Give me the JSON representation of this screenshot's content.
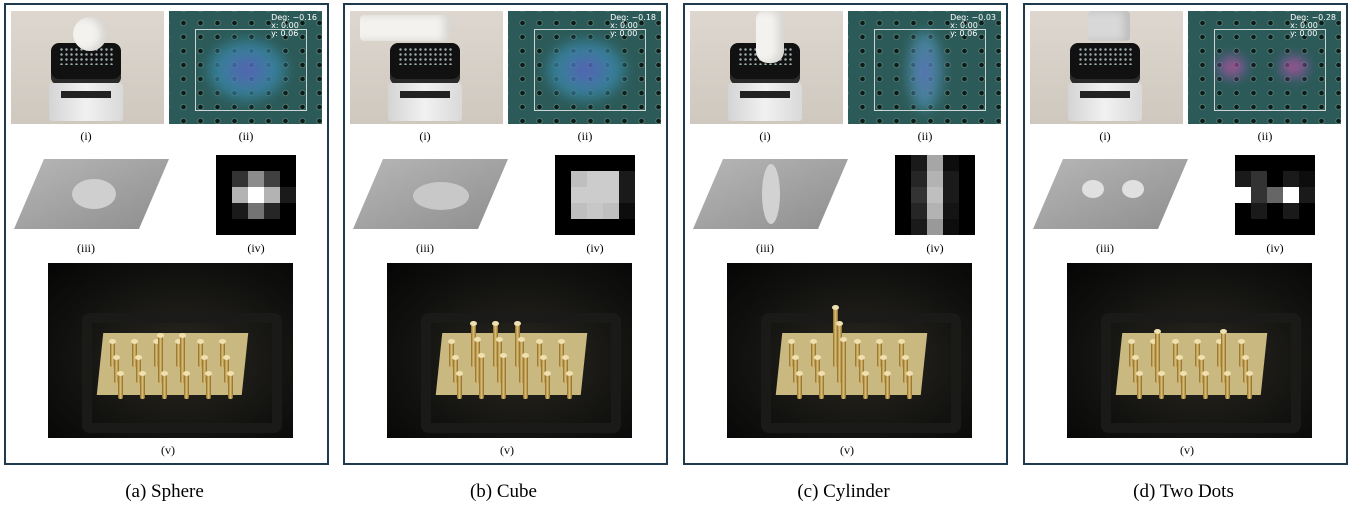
{
  "sublabels": {
    "i": "(i)",
    "ii": "(ii)",
    "iii": "(iii)",
    "iv": "(iv)",
    "v": "(v)"
  },
  "panels": [
    {
      "caption": "(a) Sphere",
      "overlay": {
        "deg": "Deg: −0.16",
        "x": "x: 0.00",
        "y": "y: 0.06"
      },
      "heatmap": [
        [
          0,
          0,
          0,
          0,
          0
        ],
        [
          0,
          20,
          55,
          25,
          0
        ],
        [
          0,
          70,
          100,
          70,
          10
        ],
        [
          0,
          10,
          45,
          15,
          0
        ],
        [
          0,
          0,
          0,
          0,
          0
        ]
      ],
      "indenter": "sphere"
    },
    {
      "caption": "(b) Cube",
      "overlay": {
        "deg": "Deg: −0.18",
        "x": "x: 0.00",
        "y": "y: 0.00"
      },
      "heatmap": [
        [
          0,
          0,
          0,
          0,
          0
        ],
        [
          0,
          75,
          80,
          80,
          10
        ],
        [
          0,
          80,
          80,
          80,
          10
        ],
        [
          0,
          75,
          78,
          75,
          5
        ],
        [
          0,
          0,
          0,
          0,
          0
        ]
      ],
      "indenter": "cube"
    },
    {
      "caption": "(c) Cylinder",
      "overlay": {
        "deg": "Deg: −0.03",
        "x": "x: 0.00",
        "y": "y: 0.06"
      },
      "heatmap": [
        [
          0,
          10,
          65,
          5,
          0
        ],
        [
          0,
          15,
          70,
          10,
          0
        ],
        [
          0,
          20,
          75,
          10,
          0
        ],
        [
          0,
          15,
          70,
          8,
          0
        ],
        [
          0,
          10,
          60,
          5,
          0
        ]
      ],
      "indenter": "cylinder"
    },
    {
      "caption": "(d) Two Dots",
      "overlay": {
        "deg": "Deg: −0.28",
        "x": "x: 0.00",
        "y": "y: 0.00"
      },
      "heatmap": [
        [
          0,
          0,
          0,
          0,
          0
        ],
        [
          10,
          20,
          0,
          10,
          5
        ],
        [
          100,
          20,
          40,
          100,
          10
        ],
        [
          0,
          10,
          0,
          10,
          0
        ],
        [
          0,
          0,
          0,
          0,
          0
        ]
      ],
      "indenter": "two-dots"
    }
  ]
}
